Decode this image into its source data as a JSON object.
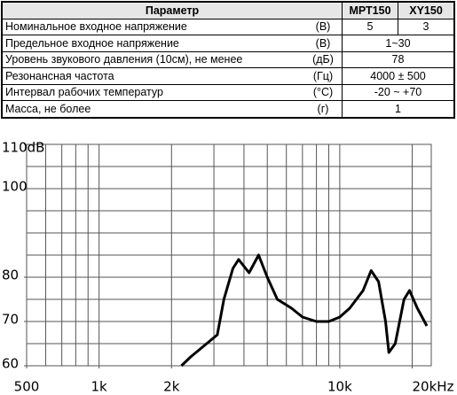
{
  "table": {
    "header": [
      "Параметр",
      "МРТ150",
      "XY150"
    ],
    "rows": [
      {
        "label": "Номинальное входное напряжение",
        "unit": "(В)",
        "values": [
          "5",
          "3"
        ]
      },
      {
        "label": "Предельное входное напряжение",
        "unit": "(В)",
        "values": [
          "1~30"
        ]
      },
      {
        "label": "Уровень звукового давления (10см), не менее",
        "unit": "(дБ)",
        "values": [
          "78"
        ]
      },
      {
        "label": "Резонансная частота",
        "unit": "(Гц)",
        "values": [
          "4000 ± 500"
        ]
      },
      {
        "label": "Интервал рабочих температур",
        "unit": "(°C)",
        "values": [
          "-20 ~ +70"
        ]
      },
      {
        "label": "Масса, не более",
        "unit": "(г)",
        "values": [
          "1"
        ]
      }
    ]
  },
  "chart_data": {
    "type": "line",
    "xscale": "log",
    "color": "#000000",
    "xlim": [
      500,
      24000
    ],
    "ylim": [
      60,
      110
    ],
    "xticks": [
      {
        "value": 500,
        "label": "500"
      },
      {
        "value": 1000,
        "label": "1k"
      },
      {
        "value": 2000,
        "label": "2k"
      },
      {
        "value": 10000,
        "label": "10k"
      },
      {
        "value": 20000,
        "label": "20kHz"
      }
    ],
    "yticks": [
      60,
      70,
      80,
      100,
      {
        "value": 110,
        "label": "110dB"
      }
    ],
    "xgrid": [
      600,
      700,
      800,
      900,
      1000,
      2000,
      3000,
      4000,
      5000,
      6000,
      7000,
      8000,
      9000,
      10000,
      20000
    ],
    "ygrid": [
      65,
      70,
      75,
      80,
      85,
      90,
      95,
      100,
      105
    ],
    "x": [
      2200,
      2400,
      2800,
      3100,
      3300,
      3600,
      3800,
      4200,
      4600,
      5000,
      5500,
      6300,
      7000,
      8000,
      9000,
      10000,
      11000,
      12500,
      13500,
      14500,
      15500,
      16000,
      17000,
      18500,
      19500,
      21000,
      23000
    ],
    "values": [
      60,
      62,
      65,
      67,
      75,
      82,
      84,
      81,
      85,
      80,
      75,
      73,
      71,
      70,
      70,
      71,
      73,
      77,
      81.5,
      79,
      70,
      63,
      65,
      75,
      77,
      73,
      69
    ]
  }
}
